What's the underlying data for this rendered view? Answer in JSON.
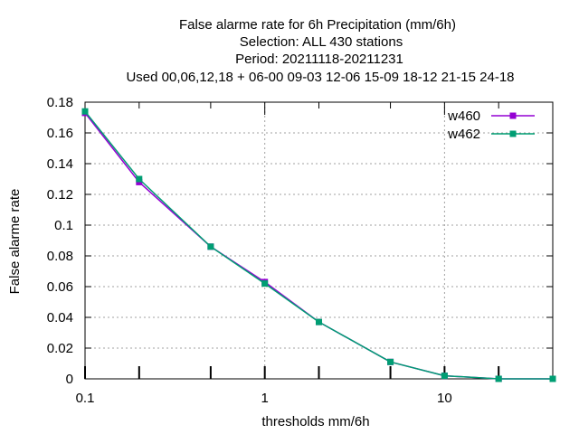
{
  "chart_data": {
    "type": "line",
    "title": [
      "False alarme rate  for 6h Precipitation (mm/6h)",
      "Selection: ALL     430 stations",
      "Period: 20211118-20211231",
      "Used  00,06,12,18  + 06-00 09-03 12-06 15-09 18-12 21-15 24-18"
    ],
    "xlabel": "thresholds mm/6h",
    "ylabel": "False alarme rate",
    "xscale": "log",
    "xlim": [
      0.1,
      40
    ],
    "ylim": [
      0,
      0.18
    ],
    "x_tick_labels": [
      "0.1",
      "1",
      "10"
    ],
    "y_ticks": [
      0,
      0.02,
      0.04,
      0.06,
      0.08,
      0.1,
      0.12,
      0.14,
      0.16,
      0.18
    ],
    "y_tick_labels": [
      "0",
      "0.02",
      "0.04",
      "0.06",
      "0.08",
      "0.1",
      "0.12",
      "0.14",
      "0.16",
      "0.18"
    ],
    "grid": true,
    "legend_position": "top-right",
    "x": [
      0.1,
      0.2,
      0.5,
      1,
      2,
      5,
      10,
      20,
      40
    ],
    "series": [
      {
        "name": "w460",
        "color": "#9400d3",
        "values": [
          0.173,
          0.128,
          0.086,
          0.063,
          0.037,
          0.011,
          0.002,
          0.0,
          0.0
        ]
      },
      {
        "name": "w462",
        "color": "#009e73",
        "values": [
          0.174,
          0.13,
          0.086,
          0.062,
          0.037,
          0.011,
          0.002,
          0.0,
          0.0
        ]
      }
    ]
  }
}
